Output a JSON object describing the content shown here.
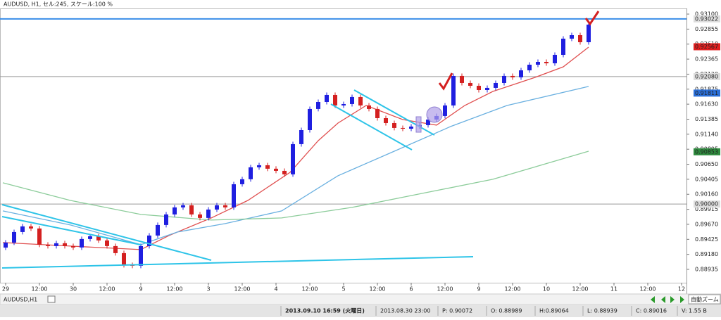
{
  "chart_data": {
    "type": "candlestick",
    "title": "AUDUSD, H1, セル:245, スケール:100 %",
    "x": [
      0,
      3,
      6,
      9,
      12,
      15,
      18,
      21,
      24,
      27,
      30,
      33,
      36,
      39,
      42,
      45,
      48,
      51,
      54,
      57,
      60,
      63,
      66,
      69,
      72,
      75,
      78,
      81,
      84,
      87,
      90,
      93,
      96,
      99,
      102,
      105,
      108,
      111,
      114,
      117,
      120,
      123,
      126,
      129,
      132,
      135,
      138,
      141,
      144,
      147,
      150,
      153,
      156,
      159,
      162,
      165,
      168,
      171,
      174,
      177,
      180,
      183,
      186,
      189,
      192,
      195,
      198,
      201,
      204,
      207
    ],
    "open": [
      0.8929,
      0.89372,
      0.89544,
      0.89636,
      0.89602,
      0.89338,
      0.89315,
      0.89361,
      0.89315,
      0.89292,
      0.8943,
      0.89475,
      0.89407,
      0.89315,
      0.892,
      0.89005,
      0.88994,
      0.89315,
      0.89487,
      0.89659,
      0.89831,
      0.89946,
      0.8998,
      0.89831,
      0.89774,
      0.89911,
      0.8998,
      0.89946,
      0.90324,
      0.90405,
      0.906,
      0.90634,
      0.90577,
      0.90542,
      0.90485,
      0.90978,
      0.91207,
      0.91552,
      0.91666,
      0.91781,
      0.91609,
      0.91632,
      0.91747,
      0.91609,
      0.91552,
      0.91402,
      0.91322,
      0.91242,
      0.9123,
      0.91265,
      0.91288,
      0.91379,
      0.91437,
      0.91609,
      0.92091,
      0.91976,
      0.9193,
      0.91861,
      0.91896,
      0.91976,
      0.92091,
      0.92068,
      0.92182,
      0.92274,
      0.9232,
      0.92297,
      0.92435,
      0.92699,
      0.92756,
      0.92641
    ],
    "high": [
      0.89412,
      0.89584,
      0.89676,
      0.89676,
      0.89642,
      0.89378,
      0.89401,
      0.89401,
      0.89355,
      0.8947,
      0.89515,
      0.89515,
      0.89447,
      0.89355,
      0.8924,
      0.89045,
      0.89355,
      0.89527,
      0.89699,
      0.89871,
      0.89986,
      0.9002,
      0.9002,
      0.89871,
      0.89951,
      0.9002,
      0.9002,
      0.90364,
      0.90445,
      0.9064,
      0.90674,
      0.90674,
      0.90617,
      0.90582,
      0.91018,
      0.91247,
      0.91592,
      0.91706,
      0.91821,
      0.91821,
      0.91672,
      0.91787,
      0.91787,
      0.91649,
      0.91592,
      0.91442,
      0.91362,
      0.91282,
      0.91305,
      0.91328,
      0.91419,
      0.91477,
      0.91649,
      0.92131,
      0.92131,
      0.92016,
      0.9197,
      0.91936,
      0.92016,
      0.92131,
      0.92131,
      0.92222,
      0.92314,
      0.9236,
      0.9236,
      0.92475,
      0.92739,
      0.92796,
      0.92796,
      0.92968
    ],
    "low": [
      0.8925,
      0.89332,
      0.89504,
      0.89562,
      0.89298,
      0.89275,
      0.89275,
      0.89275,
      0.89252,
      0.89252,
      0.8939,
      0.89367,
      0.89275,
      0.8916,
      0.88965,
      0.88954,
      0.88954,
      0.89275,
      0.89447,
      0.89619,
      0.89791,
      0.89906,
      0.89791,
      0.89734,
      0.89734,
      0.89871,
      0.89906,
      0.89906,
      0.90284,
      0.90365,
      0.9056,
      0.90537,
      0.90502,
      0.90445,
      0.90445,
      0.90938,
      0.91167,
      0.91512,
      0.91626,
      0.91569,
      0.91569,
      0.91592,
      0.91569,
      0.91512,
      0.91362,
      0.91282,
      0.91202,
      0.9119,
      0.9119,
      0.91225,
      0.91248,
      0.91339,
      0.91397,
      0.91569,
      0.91936,
      0.9189,
      0.91821,
      0.91821,
      0.91856,
      0.91936,
      0.92028,
      0.92028,
      0.92142,
      0.92234,
      0.92257,
      0.92257,
      0.92395,
      0.92659,
      0.92601,
      0.92601
    ],
    "close": [
      0.89372,
      0.89544,
      0.89636,
      0.89602,
      0.89338,
      0.89315,
      0.89361,
      0.89315,
      0.89292,
      0.8943,
      0.89475,
      0.89407,
      0.89315,
      0.892,
      0.89005,
      0.88994,
      0.89315,
      0.89487,
      0.89659,
      0.89831,
      0.89946,
      0.8998,
      0.89831,
      0.89774,
      0.89911,
      0.8998,
      0.89946,
      0.90324,
      0.90405,
      0.906,
      0.90634,
      0.90577,
      0.90542,
      0.90485,
      0.90978,
      0.91207,
      0.91552,
      0.91666,
      0.91781,
      0.91609,
      0.91632,
      0.91747,
      0.91609,
      0.91552,
      0.91402,
      0.91322,
      0.91242,
      0.9123,
      0.91265,
      0.91288,
      0.91379,
      0.91437,
      0.91609,
      0.92091,
      0.91976,
      0.9193,
      0.91861,
      0.91896,
      0.91976,
      0.92091,
      0.92068,
      0.92182,
      0.92274,
      0.9232,
      0.92297,
      0.92435,
      0.92699,
      0.92756,
      0.92641,
      0.92928
    ],
    "up_color": "#1f1fe0",
    "down_color": "#d42020",
    "lines": [
      {
        "color": "#e05050",
        "x": [
          -1,
          23,
          48,
          58,
          73,
          86,
          101,
          111,
          118,
          128,
          141,
          153,
          163,
          173,
          188,
          198,
          207
        ],
        "values": [
          0.89372,
          0.89315,
          0.89258,
          0.89487,
          0.89774,
          0.9006,
          0.90519,
          0.91035,
          0.91322,
          0.91609,
          0.91379,
          0.91288,
          0.91609,
          0.91838,
          0.92068,
          0.9224,
          0.92561
        ]
      },
      {
        "color": "#6ab0e0",
        "x": [
          -1,
          23,
          48,
          61,
          78,
          98,
          118,
          138,
          158,
          178,
          207
        ],
        "values": [
          0.89888,
          0.89659,
          0.89338,
          0.89544,
          0.89682,
          0.89888,
          0.90462,
          0.90863,
          0.91265,
          0.91609,
          0.91919
        ]
      },
      {
        "color": "#8ccc9a",
        "x": [
          -1,
          23,
          48,
          73,
          98,
          123,
          148,
          173,
          207
        ],
        "values": [
          0.90347,
          0.9006,
          0.89831,
          0.89739,
          0.89774,
          0.89946,
          0.90175,
          0.90405,
          0.90863
        ]
      }
    ],
    "levels": [
      {
        "value": 0.93022,
        "color": "#3a8ee8"
      },
      {
        "value": 0.9208,
        "color": "#999999"
      },
      {
        "value": 0.9,
        "color": "#999999"
      }
    ],
    "price_labels": [
      {
        "value": 0.93022,
        "label": "0.93022",
        "color": "#dddddd"
      },
      {
        "value": 0.92567,
        "label": "0.92567",
        "color": "#e02020"
      },
      {
        "value": 0.9208,
        "label": "0.92080",
        "color": "#dddddd"
      },
      {
        "value": 0.91811,
        "label": "0.91811",
        "color": "#2a6fd8"
      },
      {
        "value": 0.90853,
        "label": "0.90853",
        "color": "#2e8b3e"
      },
      {
        "value": 0.9,
        "label": "0.90000",
        "color": "#dddddd"
      }
    ],
    "xlim": [
      -2,
      241.75
    ],
    "xticks": [
      {
        "value": 0,
        "label": "29"
      },
      {
        "value": 12,
        "label": "12:00"
      },
      {
        "value": 24,
        "label": "30"
      },
      {
        "value": 36,
        "label": "12:00"
      },
      {
        "value": 48,
        "label": "9"
      },
      {
        "value": 60,
        "label": "12:00"
      },
      {
        "value": 72,
        "label": "3"
      },
      {
        "value": 84,
        "label": "12:00"
      },
      {
        "value": 96,
        "label": "4"
      },
      {
        "value": 108,
        "label": "12:00"
      },
      {
        "value": 120,
        "label": "5"
      },
      {
        "value": 132,
        "label": "12:00"
      },
      {
        "value": 144,
        "label": "6"
      },
      {
        "value": 156,
        "label": "12:00"
      },
      {
        "value": 168,
        "label": "9"
      },
      {
        "value": 180,
        "label": "12:00"
      },
      {
        "value": 192,
        "label": "10"
      },
      {
        "value": 204,
        "label": "12:00"
      },
      {
        "value": 216,
        "label": "11"
      },
      {
        "value": 228,
        "label": "12:00"
      },
      {
        "value": 240,
        "label": "12"
      }
    ],
    "ylim": [
      0.88717,
      0.93192
    ],
    "yticks": [
      {
        "value": 0.931,
        "label": "0.93100"
      },
      {
        "value": 0.92855,
        "label": "0.92855"
      },
      {
        "value": 0.9261,
        "label": "0.92610"
      },
      {
        "value": 0.92365,
        "label": "0.92365"
      },
      {
        "value": 0.9212,
        "label": "0.92120"
      },
      {
        "value": 0.91875,
        "label": "0.91875"
      },
      {
        "value": 0.9163,
        "label": "0.91630"
      },
      {
        "value": 0.91385,
        "label": "0.91385"
      },
      {
        "value": 0.9114,
        "label": "0.91140"
      },
      {
        "value": 0.90895,
        "label": "0.90895"
      },
      {
        "value": 0.9065,
        "label": "0.90650"
      },
      {
        "value": 0.90405,
        "label": "0.90405"
      },
      {
        "value": 0.9016,
        "label": "0.90160"
      },
      {
        "value": 0.89915,
        "label": "0.89915"
      },
      {
        "value": 0.8967,
        "label": "0.89670"
      },
      {
        "value": 0.89425,
        "label": "0.89425"
      },
      {
        "value": 0.8918,
        "label": "0.89180"
      },
      {
        "value": 0.88935,
        "label": "0.88935"
      }
    ],
    "grid": false
  },
  "window": {
    "tab": "AUDUSD,H1",
    "zoom": "自動ズーム",
    "status": [
      "2013.09.10 16:59 (火曜日)",
      "2013.08.30 23:00",
      "P: 0.90072",
      "O: 0.88989",
      "H:0.89064",
      "L: 0.88939",
      "C: 0.89016",
      "V: 1.55 B"
    ]
  }
}
